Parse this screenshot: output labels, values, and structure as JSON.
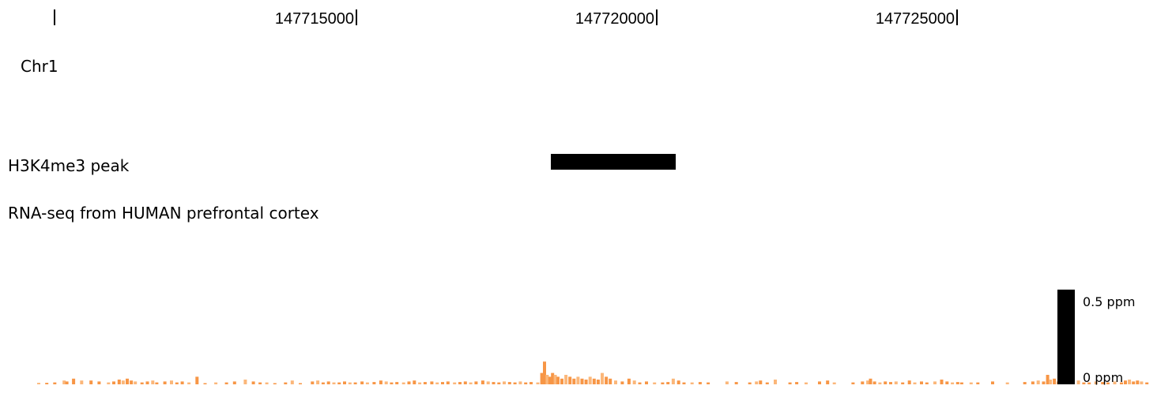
{
  "ruler": {
    "chromosome_label": "Chr1",
    "ticks": [
      {
        "label": "147715000",
        "position_bp": 147715000
      },
      {
        "label": "147720000",
        "position_bp": 147720000
      },
      {
        "label": "147725000",
        "position_bp": 147725000
      }
    ]
  },
  "tracks": {
    "peak_label": "H3K4me3 peak",
    "rnaseq_label": "RNA-seq from HUMAN prefrontal cortex"
  },
  "scale": {
    "max_label": "0.5 ppm",
    "min_label": "0 ppm"
  },
  "colors": {
    "signal": "#f79646",
    "signal_light": "#fbb77a",
    "peak": "#000000"
  },
  "chart_data": {
    "type": "bar",
    "view_start_bp": 147711800,
    "view_end_bp": 147728600,
    "peak_interval_bp": [
      147719660,
      147721520
    ],
    "ylim": [
      0,
      0.5
    ],
    "ylabel_max": "0.5 ppm",
    "ylabel_min": "0 ppm",
    "signal": [
      [
        147712000,
        0.008
      ],
      [
        147712120,
        0.008
      ],
      [
        147712240,
        0.01
      ],
      [
        147712380,
        0.02
      ],
      [
        147712420,
        0.015
      ],
      [
        147712520,
        0.03
      ],
      [
        147712640,
        0.02
      ],
      [
        147712780,
        0.02
      ],
      [
        147712900,
        0.015
      ],
      [
        147713040,
        0.01
      ],
      [
        147713120,
        0.015
      ],
      [
        147713200,
        0.025
      ],
      [
        147713260,
        0.02
      ],
      [
        147713320,
        0.03
      ],
      [
        147713380,
        0.02
      ],
      [
        147713440,
        0.015
      ],
      [
        147713540,
        0.01
      ],
      [
        147713620,
        0.015
      ],
      [
        147713700,
        0.02
      ],
      [
        147713760,
        0.01
      ],
      [
        147713880,
        0.015
      ],
      [
        147713980,
        0.02
      ],
      [
        147714060,
        0.01
      ],
      [
        147714140,
        0.015
      ],
      [
        147714240,
        0.01
      ],
      [
        147714360,
        0.04
      ],
      [
        147714480,
        0.005
      ],
      [
        147714640,
        0.01
      ],
      [
        147714800,
        0.01
      ],
      [
        147714920,
        0.015
      ],
      [
        147715080,
        0.025
      ],
      [
        147715200,
        0.015
      ],
      [
        147715300,
        0.01
      ],
      [
        147715400,
        0.01
      ],
      [
        147715520,
        0.005
      ],
      [
        147715680,
        0.01
      ],
      [
        147715780,
        0.02
      ],
      [
        147715900,
        0.005
      ],
      [
        147716080,
        0.015
      ],
      [
        147716160,
        0.02
      ],
      [
        147716240,
        0.01
      ],
      [
        147716320,
        0.015
      ],
      [
        147716400,
        0.01
      ],
      [
        147716480,
        0.01
      ],
      [
        147716560,
        0.015
      ],
      [
        147716640,
        0.01
      ],
      [
        147716720,
        0.01
      ],
      [
        147716820,
        0.015
      ],
      [
        147716900,
        0.01
      ],
      [
        147717000,
        0.012
      ],
      [
        147717100,
        0.02
      ],
      [
        147717180,
        0.015
      ],
      [
        147717260,
        0.01
      ],
      [
        147717340,
        0.012
      ],
      [
        147717440,
        0.01
      ],
      [
        147717520,
        0.015
      ],
      [
        147717600,
        0.02
      ],
      [
        147717680,
        0.01
      ],
      [
        147717760,
        0.012
      ],
      [
        147717860,
        0.015
      ],
      [
        147717940,
        0.01
      ],
      [
        147718020,
        0.012
      ],
      [
        147718100,
        0.015
      ],
      [
        147718200,
        0.01
      ],
      [
        147718280,
        0.012
      ],
      [
        147718360,
        0.015
      ],
      [
        147718440,
        0.01
      ],
      [
        147718520,
        0.015
      ],
      [
        147718620,
        0.02
      ],
      [
        147718700,
        0.015
      ],
      [
        147718780,
        0.012
      ],
      [
        147718860,
        0.01
      ],
      [
        147718940,
        0.015
      ],
      [
        147719020,
        0.012
      ],
      [
        147719100,
        0.01
      ],
      [
        147719180,
        0.015
      ],
      [
        147719260,
        0.01
      ],
      [
        147719340,
        0.012
      ],
      [
        147719440,
        0.01
      ],
      [
        147719500,
        0.06
      ],
      [
        147719540,
        0.12
      ],
      [
        147719580,
        0.05
      ],
      [
        147719620,
        0.04
      ],
      [
        147719660,
        0.06
      ],
      [
        147719700,
        0.05
      ],
      [
        147719740,
        0.04
      ],
      [
        147719800,
        0.03
      ],
      [
        147719860,
        0.05
      ],
      [
        147719920,
        0.04
      ],
      [
        147719980,
        0.03
      ],
      [
        147720040,
        0.04
      ],
      [
        147720100,
        0.03
      ],
      [
        147720160,
        0.025
      ],
      [
        147720220,
        0.04
      ],
      [
        147720280,
        0.03
      ],
      [
        147720340,
        0.025
      ],
      [
        147720400,
        0.06
      ],
      [
        147720460,
        0.04
      ],
      [
        147720520,
        0.03
      ],
      [
        147720600,
        0.02
      ],
      [
        147720700,
        0.015
      ],
      [
        147720800,
        0.03
      ],
      [
        147720880,
        0.02
      ],
      [
        147720960,
        0.01
      ],
      [
        147721060,
        0.015
      ],
      [
        147721180,
        0.01
      ],
      [
        147721300,
        0.01
      ],
      [
        147721380,
        0.012
      ],
      [
        147721460,
        0.03
      ],
      [
        147721540,
        0.02
      ],
      [
        147721620,
        0.01
      ],
      [
        147721740,
        0.01
      ],
      [
        147721860,
        0.012
      ],
      [
        147721980,
        0.01
      ],
      [
        147722260,
        0.015
      ],
      [
        147722400,
        0.012
      ],
      [
        147722600,
        0.01
      ],
      [
        147722700,
        0.015
      ],
      [
        147722760,
        0.02
      ],
      [
        147722860,
        0.01
      ],
      [
        147722980,
        0.025
      ],
      [
        147723200,
        0.01
      ],
      [
        147723300,
        0.012
      ],
      [
        147723440,
        0.01
      ],
      [
        147723640,
        0.015
      ],
      [
        147723760,
        0.02
      ],
      [
        147723860,
        0.01
      ],
      [
        147724140,
        0.01
      ],
      [
        147724280,
        0.015
      ],
      [
        147724360,
        0.02
      ],
      [
        147724400,
        0.03
      ],
      [
        147724460,
        0.015
      ],
      [
        147724540,
        0.01
      ],
      [
        147724620,
        0.015
      ],
      [
        147724700,
        0.012
      ],
      [
        147724780,
        0.015
      ],
      [
        147724880,
        0.01
      ],
      [
        147724980,
        0.02
      ],
      [
        147725060,
        0.01
      ],
      [
        147725160,
        0.015
      ],
      [
        147725240,
        0.01
      ],
      [
        147725360,
        0.015
      ],
      [
        147725460,
        0.025
      ],
      [
        147725540,
        0.015
      ],
      [
        147725620,
        0.01
      ],
      [
        147725700,
        0.012
      ],
      [
        147725760,
        0.01
      ],
      [
        147725900,
        0.01
      ],
      [
        147726000,
        0.01
      ],
      [
        147726220,
        0.015
      ],
      [
        147726440,
        0.01
      ],
      [
        147726700,
        0.012
      ],
      [
        147726820,
        0.015
      ],
      [
        147726900,
        0.02
      ],
      [
        147726980,
        0.015
      ],
      [
        147727040,
        0.05
      ],
      [
        147727080,
        0.025
      ],
      [
        147727140,
        0.03
      ],
      [
        147727200,
        0.015
      ],
      [
        147727260,
        0.02
      ],
      [
        147727340,
        0.015
      ],
      [
        147727420,
        0.015
      ],
      [
        147727500,
        0.02
      ],
      [
        147727580,
        0.01
      ],
      [
        147727660,
        0.01
      ],
      [
        147727760,
        0.015
      ],
      [
        147727860,
        0.012
      ],
      [
        147727940,
        0.01
      ],
      [
        147728040,
        0.015
      ],
      [
        147728140,
        0.01
      ],
      [
        147728200,
        0.02
      ],
      [
        147728260,
        0.025
      ],
      [
        147728320,
        0.015
      ],
      [
        147728380,
        0.02
      ],
      [
        147728440,
        0.015
      ],
      [
        147728520,
        0.01
      ]
    ]
  }
}
